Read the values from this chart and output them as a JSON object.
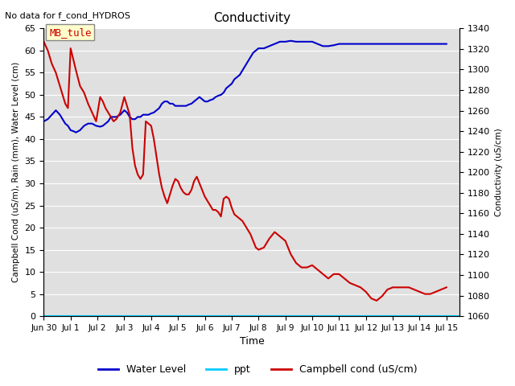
{
  "title": "Conductivity",
  "top_left_text": "No data for f_cond_HYDROS",
  "xlabel": "Time",
  "ylabel_left": "Campbell Cond (uS/m), Rain (mm), Water Level (cm)",
  "ylabel_right": "Conductivity (uS/cm)",
  "ylim_left": [
    0,
    65
  ],
  "ylim_right": [
    1060,
    1340
  ],
  "yticks_left": [
    0,
    5,
    10,
    15,
    20,
    25,
    30,
    35,
    40,
    45,
    50,
    55,
    60,
    65
  ],
  "yticks_right": [
    1060,
    1080,
    1100,
    1120,
    1140,
    1160,
    1180,
    1200,
    1220,
    1240,
    1260,
    1280,
    1300,
    1320,
    1340
  ],
  "xlim": [
    0,
    15.5
  ],
  "xtick_labels": [
    "Jun 30",
    "Jul 1",
    "Jul 2",
    "Jul 3",
    "Jul 4",
    "Jul 5",
    "Jul 6",
    "Jul 7",
    "Jul 8",
    "Jul 9",
    "Jul 10",
    "Jul 11",
    "Jul 12",
    "Jul 13",
    "Jul 14",
    "Jul 15"
  ],
  "xtick_positions": [
    0,
    1,
    2,
    3,
    4,
    5,
    6,
    7,
    8,
    9,
    10,
    11,
    12,
    13,
    14,
    15
  ],
  "annotation_box_text": "MB_tule",
  "background_color": "#e0e0e0",
  "legend_labels": [
    "Water Level",
    "ppt",
    "Campbell cond (uS/cm)"
  ],
  "legend_colors": [
    "#0000cc",
    "#00ccff",
    "#cc0000"
  ],
  "water_level_color": "#0000cc",
  "campbell_color": "#cc0000",
  "ppt_color": "#00ccff",
  "water_level_x": [
    0.0,
    0.15,
    0.3,
    0.45,
    0.6,
    0.7,
    0.8,
    0.9,
    1.0,
    1.1,
    1.2,
    1.35,
    1.5,
    1.65,
    1.8,
    1.95,
    2.1,
    2.2,
    2.3,
    2.4,
    2.5,
    2.6,
    2.7,
    2.85,
    3.0,
    3.1,
    3.2,
    3.3,
    3.4,
    3.5,
    3.6,
    3.7,
    3.8,
    3.9,
    4.0,
    4.1,
    4.2,
    4.3,
    4.4,
    4.5,
    4.6,
    4.7,
    4.8,
    4.9,
    5.0,
    5.1,
    5.2,
    5.3,
    5.4,
    5.5,
    5.6,
    5.7,
    5.8,
    5.9,
    6.0,
    6.1,
    6.2,
    6.3,
    6.4,
    6.5,
    6.6,
    6.7,
    6.8,
    6.9,
    7.0,
    7.1,
    7.2,
    7.3,
    7.4,
    7.5,
    7.6,
    7.7,
    7.8,
    7.9,
    8.0,
    8.2,
    8.4,
    8.6,
    8.8,
    9.0,
    9.2,
    9.4,
    9.6,
    9.8,
    10.0,
    10.2,
    10.4,
    10.6,
    10.8,
    11.0,
    11.2,
    11.4,
    11.6,
    11.8,
    12.0,
    12.2,
    12.4,
    12.6,
    12.8,
    13.0,
    13.2,
    13.4,
    13.6,
    13.8,
    14.0,
    14.2,
    14.4,
    14.6,
    14.8,
    15.0
  ],
  "water_level_y": [
    44.0,
    44.5,
    45.5,
    46.5,
    45.5,
    44.5,
    43.5,
    43.0,
    42.0,
    41.8,
    41.5,
    42.0,
    43.0,
    43.5,
    43.5,
    43.0,
    42.8,
    43.0,
    43.5,
    44.0,
    45.0,
    45.0,
    45.0,
    45.5,
    46.5,
    46.0,
    45.0,
    44.5,
    44.5,
    45.0,
    45.0,
    45.5,
    45.5,
    45.5,
    45.8,
    46.0,
    46.5,
    47.0,
    48.0,
    48.5,
    48.5,
    48.0,
    48.0,
    47.5,
    47.5,
    47.5,
    47.5,
    47.5,
    47.8,
    48.0,
    48.5,
    49.0,
    49.5,
    49.0,
    48.5,
    48.5,
    48.8,
    49.0,
    49.5,
    49.8,
    50.0,
    50.5,
    51.5,
    52.0,
    52.5,
    53.5,
    54.0,
    54.5,
    55.5,
    56.5,
    57.5,
    58.5,
    59.5,
    60.0,
    60.5,
    60.5,
    61.0,
    61.5,
    62.0,
    62.0,
    62.2,
    62.0,
    62.0,
    62.0,
    62.0,
    61.5,
    61.0,
    61.0,
    61.2,
    61.5,
    61.5,
    61.5,
    61.5,
    61.5,
    61.5,
    61.5,
    61.5,
    61.5,
    61.5,
    61.5,
    61.5,
    61.5,
    61.5,
    61.5,
    61.5,
    61.5,
    61.5,
    61.5,
    61.5,
    61.5
  ],
  "campbell_x": [
    0.0,
    0.15,
    0.3,
    0.45,
    0.6,
    0.7,
    0.8,
    0.9,
    1.0,
    1.1,
    1.2,
    1.35,
    1.5,
    1.65,
    1.8,
    1.95,
    2.1,
    2.2,
    2.3,
    2.4,
    2.5,
    2.6,
    2.7,
    2.85,
    3.0,
    3.1,
    3.2,
    3.3,
    3.4,
    3.5,
    3.6,
    3.7,
    3.8,
    3.9,
    4.0,
    4.1,
    4.2,
    4.3,
    4.4,
    4.5,
    4.6,
    4.7,
    4.8,
    4.9,
    5.0,
    5.1,
    5.2,
    5.3,
    5.4,
    5.5,
    5.6,
    5.7,
    5.8,
    5.9,
    6.0,
    6.1,
    6.2,
    6.3,
    6.4,
    6.5,
    6.6,
    6.7,
    6.8,
    6.9,
    7.0,
    7.1,
    7.2,
    7.3,
    7.4,
    7.5,
    7.6,
    7.7,
    7.8,
    7.9,
    8.0,
    8.2,
    8.4,
    8.6,
    8.8,
    9.0,
    9.2,
    9.4,
    9.6,
    9.8,
    10.0,
    10.2,
    10.4,
    10.6,
    10.8,
    11.0,
    11.2,
    11.4,
    11.6,
    11.8,
    12.0,
    12.2,
    12.4,
    12.6,
    12.8,
    13.0,
    13.2,
    13.4,
    13.6,
    13.8,
    14.0,
    14.2,
    14.4,
    14.6,
    14.8,
    15.0
  ],
  "campbell_y": [
    62.0,
    60.0,
    57.0,
    55.0,
    52.0,
    50.0,
    48.0,
    47.0,
    60.5,
    58.0,
    55.5,
    52.0,
    50.5,
    48.0,
    46.0,
    44.0,
    49.5,
    48.5,
    47.0,
    46.0,
    45.0,
    44.0,
    44.5,
    46.0,
    49.5,
    47.5,
    45.5,
    38.0,
    34.0,
    32.0,
    31.0,
    32.0,
    44.0,
    43.5,
    43.0,
    40.0,
    36.0,
    32.0,
    29.0,
    27.0,
    25.5,
    27.5,
    29.5,
    31.0,
    30.5,
    29.0,
    28.0,
    27.5,
    27.5,
    28.5,
    30.5,
    31.5,
    30.0,
    28.5,
    27.0,
    26.0,
    25.0,
    24.0,
    24.0,
    23.5,
    22.5,
    26.5,
    27.0,
    26.5,
    24.5,
    23.0,
    22.5,
    22.0,
    21.5,
    20.5,
    19.5,
    18.5,
    17.0,
    15.5,
    15.0,
    15.5,
    17.5,
    19.0,
    18.0,
    17.0,
    14.0,
    12.0,
    11.0,
    11.0,
    11.5,
    10.5,
    9.5,
    8.5,
    9.5,
    9.5,
    8.5,
    7.5,
    7.0,
    6.5,
    5.5,
    4.0,
    3.5,
    4.5,
    6.0,
    6.5,
    6.5,
    6.5,
    6.5,
    6.0,
    5.5,
    5.0,
    5.0,
    5.5,
    6.0,
    6.5
  ]
}
